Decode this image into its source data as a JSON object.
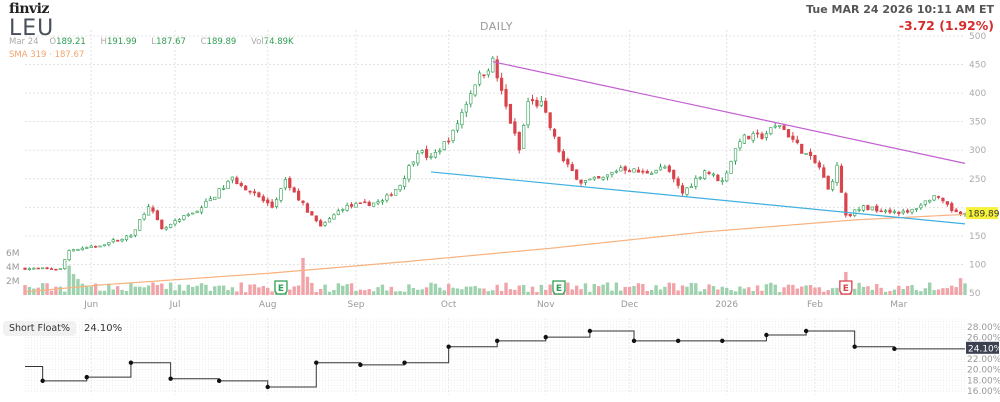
{
  "header": {
    "logo": "finviz",
    "ticker": "LEU",
    "period": "DAILY",
    "datetime": "Tue MAR 24 2026 10:11 AM ET",
    "change": "-3.72 (1.92%)",
    "ohlc": {
      "date": "Mar 24",
      "o_label": "O",
      "o": "189.21",
      "h_label": "H",
      "h": "191.99",
      "l_label": "L",
      "l": "187.67",
      "c_label": "C",
      "c": "189.89",
      "vol_label": "Vol",
      "vol": "74.89K"
    },
    "sma": "SMA 319 · 187.67"
  },
  "colors": {
    "up": "#2e9e52",
    "down": "#d9434b",
    "vol_up": "#9ed1ae",
    "vol_down": "#f2a3a8",
    "sma": "#f7b27f",
    "trend_upper": "#c35fd1",
    "trend_lower": "#3fb0e0",
    "price_tag": "#f6f23a"
  },
  "chart_data": [
    {
      "type": "candlestick",
      "title": "LEU DAILY",
      "n_days": 214,
      "ylim": [
        50,
        500
      ],
      "y_ticks": [
        50,
        100,
        150,
        200,
        250,
        300,
        350,
        400,
        450,
        500
      ],
      "volume_ticks": [
        "2M",
        "4M",
        "6M"
      ],
      "month_labels": [
        {
          "label": "Jun",
          "day": 15
        },
        {
          "label": "Jul",
          "day": 34
        },
        {
          "label": "Aug",
          "day": 55
        },
        {
          "label": "Sep",
          "day": 75
        },
        {
          "label": "Oct",
          "day": 96
        },
        {
          "label": "Nov",
          "day": 118
        },
        {
          "label": "Dec",
          "day": 137
        },
        {
          "label": "2026",
          "day": 159
        },
        {
          "label": "Feb",
          "day": 179
        },
        {
          "label": "Mar",
          "day": 198
        }
      ],
      "close_keypoints": [
        [
          0,
          93
        ],
        [
          8,
          92
        ],
        [
          10,
          125
        ],
        [
          15,
          130
        ],
        [
          24,
          150
        ],
        [
          28,
          205
        ],
        [
          31,
          160
        ],
        [
          40,
          200
        ],
        [
          47,
          250
        ],
        [
          49,
          240
        ],
        [
          56,
          200
        ],
        [
          59,
          245
        ],
        [
          61,
          225
        ],
        [
          67,
          165
        ],
        [
          72,
          200
        ],
        [
          81,
          210
        ],
        [
          85,
          240
        ],
        [
          89,
          300
        ],
        [
          92,
          285
        ],
        [
          97,
          330
        ],
        [
          102,
          420
        ],
        [
          106,
          455
        ],
        [
          108,
          400
        ],
        [
          112,
          300
        ],
        [
          114,
          385
        ],
        [
          117,
          380
        ],
        [
          119,
          340
        ],
        [
          122,
          280
        ],
        [
          126,
          245
        ],
        [
          131,
          250
        ],
        [
          135,
          270
        ],
        [
          140,
          260
        ],
        [
          145,
          270
        ],
        [
          149,
          225
        ],
        [
          154,
          265
        ],
        [
          158,
          245
        ],
        [
          162,
          320
        ],
        [
          167,
          325
        ],
        [
          171,
          345
        ],
        [
          176,
          300
        ],
        [
          180,
          270
        ],
        [
          182,
          230
        ],
        [
          184,
          270
        ],
        [
          186,
          185
        ],
        [
          190,
          200
        ],
        [
          195,
          195
        ],
        [
          200,
          190
        ],
        [
          206,
          220
        ],
        [
          210,
          195
        ],
        [
          213,
          189.89
        ]
      ],
      "last_price": "189.89",
      "sma_319_keypoints": [
        [
          0,
          52
        ],
        [
          17,
          64
        ],
        [
          56,
          85
        ],
        [
          85,
          104
        ],
        [
          120,
          129
        ],
        [
          154,
          157
        ],
        [
          188,
          178
        ],
        [
          213,
          187.67
        ]
      ],
      "trendlines": [
        {
          "name": "upper",
          "from": [
            106,
            455
          ],
          "to": [
            213,
            277
          ]
        },
        {
          "name": "lower",
          "from": [
            92,
            262
          ],
          "to": [
            213,
            171
          ]
        }
      ],
      "volume_spikes_millions": [
        [
          10,
          4.2
        ],
        [
          11,
          3.0
        ],
        [
          12,
          2.3
        ],
        [
          63,
          5.3
        ],
        [
          64,
          2.6
        ],
        [
          186,
          3.3
        ],
        [
          212,
          2.4
        ]
      ],
      "earnings_days": [
        58,
        121,
        186
      ],
      "earnings_label": "E"
    },
    {
      "type": "step-line",
      "title": "Short Float%",
      "current": "24.10%",
      "ylim": [
        16,
        28
      ],
      "y_ticks": [
        "16.00%",
        "18.00%",
        "20.00%",
        "22.00%",
        "24.00%",
        "26.00%",
        "28.00%"
      ],
      "start_value": 20.6,
      "points": [
        [
          4,
          17.9
        ],
        [
          14,
          18.6
        ],
        [
          24,
          21.3
        ],
        [
          33,
          18.3
        ],
        [
          44,
          17.9
        ],
        [
          55,
          16.75
        ],
        [
          66,
          21.3
        ],
        [
          76,
          20.9
        ],
        [
          86,
          21.3
        ],
        [
          96,
          24.3
        ],
        [
          107,
          25.4
        ],
        [
          118,
          26.1
        ],
        [
          128,
          27.25
        ],
        [
          138,
          25.4
        ],
        [
          148,
          25.4
        ],
        [
          158,
          25.4
        ],
        [
          168,
          26.5
        ],
        [
          177,
          27.25
        ],
        [
          188,
          24.3
        ],
        [
          197,
          23.9
        ]
      ],
      "end_value": 24.1
    }
  ]
}
